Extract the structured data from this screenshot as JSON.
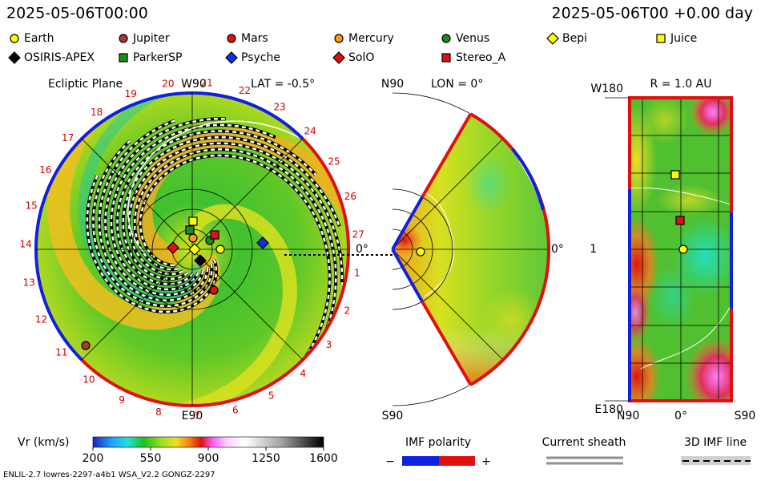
{
  "header": {
    "left": "2025-05-06T00:00",
    "right": "2025-05-06T00 +0.00 day"
  },
  "legend": [
    {
      "name": "Earth",
      "color": "#ffff00",
      "shape": "circle"
    },
    {
      "name": "Jupiter",
      "color": "#a83838",
      "shape": "circle"
    },
    {
      "name": "Mars",
      "color": "#e01010",
      "shape": "circle"
    },
    {
      "name": "Mercury",
      "color": "#ff9a10",
      "shape": "circle"
    },
    {
      "name": "Venus",
      "color": "#1c8c1c",
      "shape": "circle"
    },
    {
      "name": "Bepi",
      "color": "#ffff00",
      "shape": "diamond"
    },
    {
      "name": "Juice",
      "color": "#ffff00",
      "shape": "square"
    },
    {
      "name": "OSIRIS-APEX",
      "color": "#000000",
      "shape": "diamond"
    },
    {
      "name": "ParkerSP",
      "color": "#1c8c1c",
      "shape": "square"
    },
    {
      "name": "Psyche",
      "color": "#1030e0",
      "shape": "diamond"
    },
    {
      "name": "SolO",
      "color": "#e01010",
      "shape": "diamond"
    },
    {
      "name": "Stereo_A",
      "color": "#e01010",
      "shape": "square"
    }
  ],
  "ecliptic": {
    "title": "Ecliptic Plane",
    "top": "W90",
    "lat": "LAT = -0.5°",
    "bottom": "E90",
    "right": "0°",
    "sectors": [
      "1",
      "2",
      "3",
      "4",
      "5",
      "6",
      "7",
      "8",
      "9",
      "10",
      "11",
      "12",
      "13",
      "14",
      "15",
      "16",
      "17",
      "18",
      "19",
      "20",
      "21",
      "22",
      "23",
      "24",
      "25",
      "26",
      "27"
    ]
  },
  "meridional": {
    "top": "N90",
    "lon": "LON = 0°",
    "bottom": "S90",
    "right": "0°"
  },
  "radial": {
    "title": "R = 1.0 AU",
    "top_left": "W180",
    "mid_left": "1",
    "bottom_left": "E180",
    "x_left": "N90",
    "x_mid": "0°",
    "x_right": "S90"
  },
  "colorbar": {
    "label": "Vr (km/s)",
    "range": [
      200,
      1600
    ],
    "ticks": [
      200,
      550,
      900,
      1250,
      1600
    ]
  },
  "imf": {
    "label": "IMF polarity",
    "minus": "−",
    "plus": "+"
  },
  "sheath": {
    "label": "Current sheath"
  },
  "imf_line": {
    "label": "3D IMF line"
  },
  "footer": "ENLIL-2.7 lowres-2297-a4b1 WSA_V2.2 GONGZ-2297"
}
